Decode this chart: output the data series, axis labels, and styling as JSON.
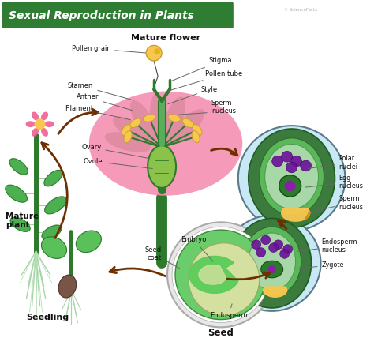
{
  "title": "Sexual Reproduction in Plants",
  "title_bg": "#2e7d32",
  "title_color": "#ffffff",
  "bg_color": "#ffffff",
  "subtitle_flower": "Mature flower",
  "label_mature_plant": "Mature\nplant",
  "label_seedling": "Seedling",
  "label_seed": "Seed",
  "arrow_color": "#6d2f00",
  "green_dark": "#2d7a2d",
  "green_mid": "#4caf50",
  "green_light": "#8bc34a",
  "pink_petal": "#f48fb1",
  "yellow_anther": "#f9c74f",
  "blue_ovule_bg": "#c8e8f5",
  "ovule_outer": "#3d7a3d",
  "ovule_inner": "#6ab96a",
  "ovule_lightest": "#a8d8a8",
  "purple_nucleus": "#7b1fa2",
  "purple_small": "#9c27b0",
  "brown_seed": "#795548",
  "tan_endosperm": "#d4e0a0",
  "seed_green": "#66bb6a",
  "seed_bright_green": "#7dda5a"
}
